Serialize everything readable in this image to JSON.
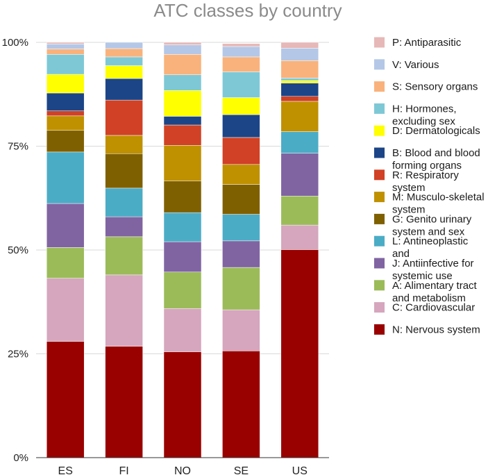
{
  "chart_data": {
    "type": "bar",
    "stacked": true,
    "title": "ATC classes by country",
    "categories": [
      "ES",
      "FI",
      "NO",
      "SE",
      "US"
    ],
    "y_ticks": [
      "0%",
      "25%",
      "50%",
      "75%",
      "100%"
    ],
    "ylim": [
      0,
      100
    ],
    "series": [
      {
        "name": "N: Nervous system",
        "color": "#990000",
        "values": [
          28,
          26.8,
          25.5,
          25.7,
          50.1
        ]
      },
      {
        "name": "C: Cardiovascular",
        "color": "#d5a6bd",
        "values": [
          15.2,
          17.2,
          10.4,
          9.9,
          5.9
        ]
      },
      {
        "name": "A: Alimentary tract and metabolism",
        "color": "#9bbb59",
        "values": [
          7.4,
          9.2,
          8.8,
          10.2,
          7
        ]
      },
      {
        "name": "J: Antiinfective for systemic use",
        "color": "#8064a2",
        "values": [
          10.6,
          4.8,
          7.3,
          6.4,
          10.3
        ]
      },
      {
        "name": "L: Antineoplastic and",
        "color": "#4bacc6",
        "values": [
          12.4,
          6.9,
          7,
          6.4,
          5.2
        ]
      },
      {
        "name": "G: Genito urinary system and sex",
        "color": "#7f6000",
        "values": [
          5.2,
          8.3,
          7.6,
          7.2,
          0
        ]
      },
      {
        "name": "M: Musculo-skeletal system",
        "color": "#bf9000",
        "values": [
          3.5,
          4.4,
          8.6,
          4.8,
          7.3
        ]
      },
      {
        "name": "R: Respiratory system",
        "color": "#d04125",
        "values": [
          1.2,
          8.5,
          4.9,
          6.5,
          1.2
        ]
      },
      {
        "name": "B: Blood and blood forming organs",
        "color": "#1c4587",
        "values": [
          4.3,
          5.2,
          2.1,
          5.5,
          3.2
        ]
      },
      {
        "name": "D: Dermatologicals",
        "color": "#ffff00",
        "values": [
          4.5,
          3.1,
          6.2,
          4.1,
          0.6
        ]
      },
      {
        "name": "H: Hormones, excluding sex",
        "color": "#7ec8d6",
        "values": [
          4.8,
          2.1,
          3.8,
          6.2,
          0.6
        ]
      },
      {
        "name": "S: Sensory organs",
        "color": "#f9b27c",
        "values": [
          1.3,
          2,
          4.9,
          3.6,
          4.2
        ]
      },
      {
        "name": "V: Various",
        "color": "#b4c7e7",
        "values": [
          1.2,
          1.5,
          2.3,
          2.5,
          3
        ]
      },
      {
        "name": "P: Antiparasitic",
        "color": "#e6b8b7",
        "values": [
          0.4,
          0,
          0.6,
          0.7,
          1.4
        ]
      }
    ],
    "legend": {
      "position": "right",
      "entries": [
        {
          "lines": [
            "P: Antiparasitic"
          ],
          "color": "#e6b8b7"
        },
        {
          "lines": [
            "V: Various"
          ],
          "color": "#b4c7e7"
        },
        {
          "lines": [
            "S: Sensory organs"
          ],
          "color": "#f9b27c"
        },
        {
          "lines": [
            "H: Hormones,",
            "excluding sex"
          ],
          "color": "#7ec8d6"
        },
        {
          "lines": [
            "D: Dermatologicals"
          ],
          "color": "#ffff00"
        },
        {
          "lines": [
            "B: Blood and blood",
            "forming organs"
          ],
          "color": "#1c4587"
        },
        {
          "lines": [
            "R: Respiratory",
            "system"
          ],
          "color": "#d04125"
        },
        {
          "lines": [
            "M: Musculo-skeletal",
            "system"
          ],
          "color": "#bf9000"
        },
        {
          "lines": [
            "G: Genito urinary",
            "system and sex"
          ],
          "color": "#7f6000"
        },
        {
          "lines": [
            "L: Antineoplastic",
            "and"
          ],
          "color": "#4bacc6"
        },
        {
          "lines": [
            "J: Antiinfective for",
            "systemic use"
          ],
          "color": "#8064a2"
        },
        {
          "lines": [
            "A: Alimentary tract",
            "and metabolism"
          ],
          "color": "#9bbb59"
        },
        {
          "lines": [
            "C: Cardiovascular"
          ],
          "color": "#d5a6bd"
        },
        {
          "lines": [
            "N: Nervous system"
          ],
          "color": "#990000"
        }
      ]
    }
  }
}
